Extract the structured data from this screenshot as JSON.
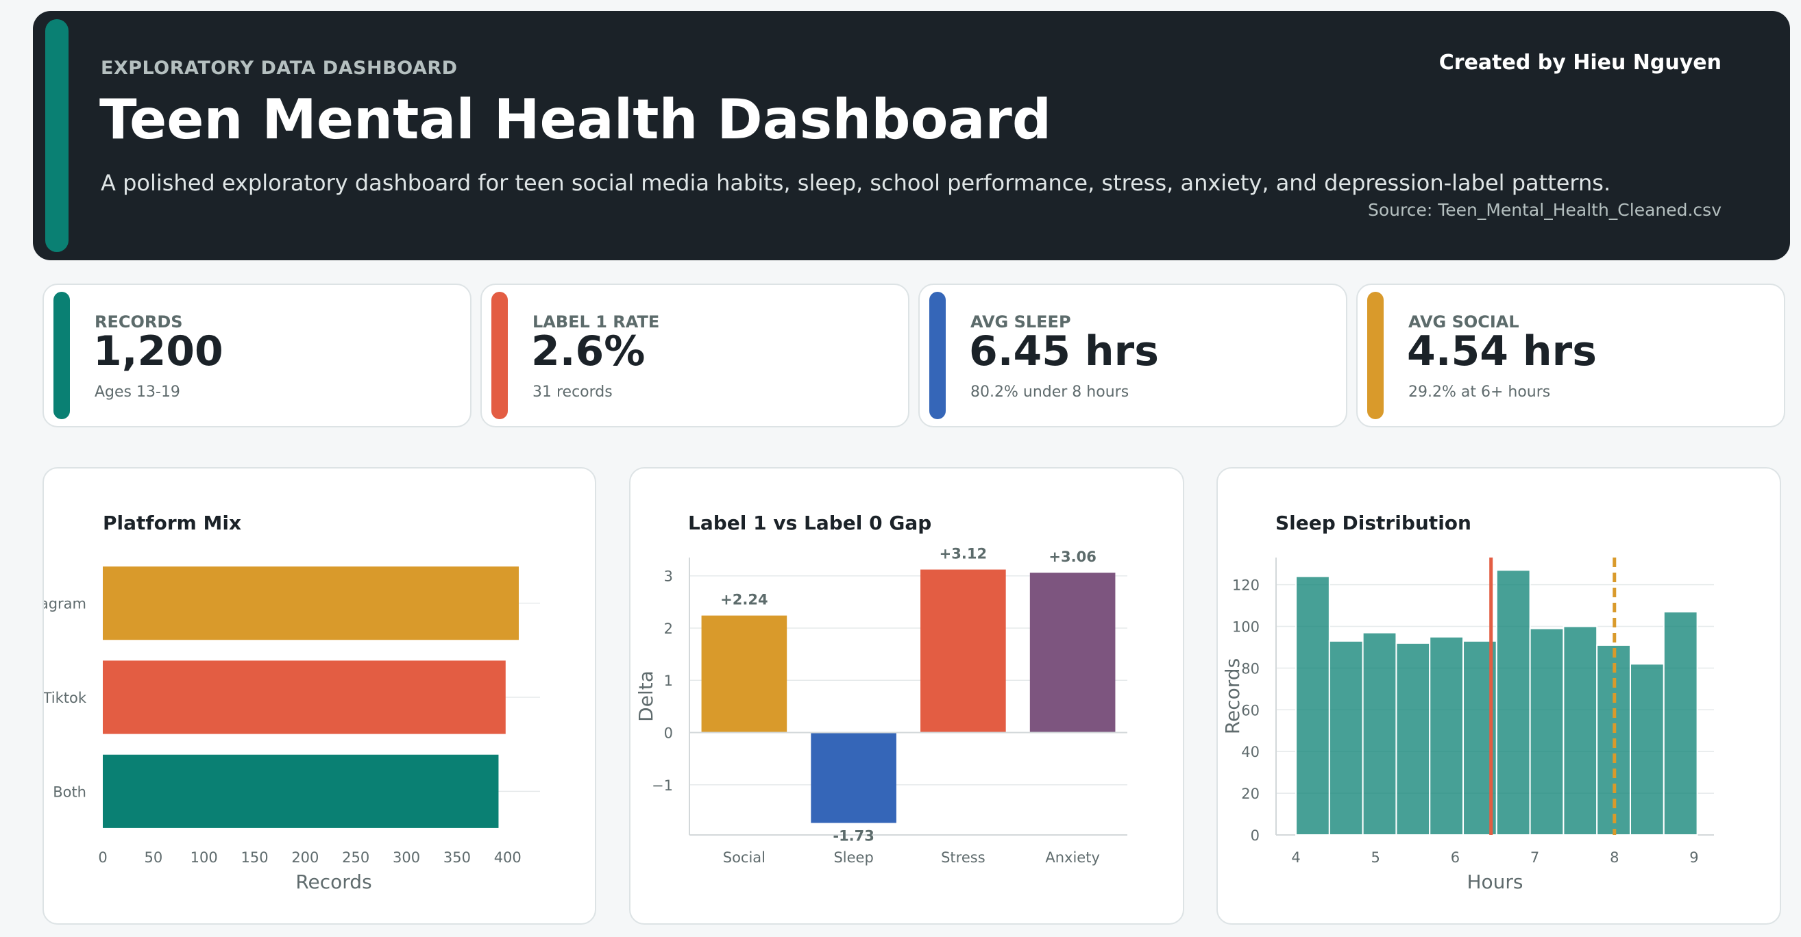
{
  "header": {
    "kicker": "EXPLORATORY DATA DASHBOARD",
    "title": "Teen Mental Health Dashboard",
    "subtitle": "A polished exploratory dashboard for teen social media habits, sleep, school performance, stress, anxiety, and depression-label patterns.",
    "credit": "Created by Hieu Nguyen",
    "source": "Source: Teen_Mental_Health_Cleaned.csv"
  },
  "kpis": [
    {
      "label": "RECORDS",
      "value": "1,200",
      "note": "Ages 13-19",
      "color": "#0a8073"
    },
    {
      "label": "LABEL 1 RATE",
      "value": "2.6%",
      "note": "31 records",
      "color": "#e35d43"
    },
    {
      "label": "AVG SLEEP",
      "value": "6.45 hrs",
      "note": "80.2% under 8 hours",
      "color": "#3566b8"
    },
    {
      "label": "AVG SOCIAL",
      "value": "4.54 hrs",
      "note": "29.2% at 6+ hours",
      "color": "#d99a2b"
    }
  ],
  "chart_data": [
    {
      "type": "bar",
      "orientation": "horizontal",
      "title": "Platform Mix",
      "categories": [
        "Instagram",
        "Tiktok",
        "Both"
      ],
      "values": [
        411,
        398,
        391
      ],
      "colors": [
        "#d99a2b",
        "#e35d43",
        "#0a8073"
      ],
      "xlabel": "Records",
      "ylabel": "",
      "xlim": [
        0,
        432
      ],
      "xticks": [
        0,
        50,
        100,
        150,
        200,
        250,
        300,
        350,
        400
      ],
      "grid": true
    },
    {
      "type": "bar",
      "title": "Label 1 vs Label 0 Gap",
      "categories": [
        "Social",
        "Sleep",
        "Stress",
        "Anxiety"
      ],
      "values": [
        2.24,
        -1.73,
        3.12,
        3.06
      ],
      "data_labels": [
        "+2.24",
        "-1.73",
        "+3.12",
        "+3.06"
      ],
      "colors": [
        "#d99a2b",
        "#3566b8",
        "#e35d43",
        "#7d557f"
      ],
      "xlabel": "",
      "ylabel": "Delta",
      "ylim": [
        -1.96,
        3.35
      ],
      "yticks": [
        -1,
        0,
        1,
        2,
        3
      ],
      "ytick_labels": [
        "−1",
        "0",
        "1",
        "2",
        "3"
      ],
      "grid": true
    },
    {
      "type": "bar",
      "subtype": "histogram",
      "title": "Sleep Distribution",
      "bin_edges": [
        4.0,
        4.42,
        4.84,
        5.26,
        5.68,
        6.1,
        6.52,
        6.94,
        7.36,
        7.78,
        8.2,
        8.62,
        9.04
      ],
      "values": [
        124,
        93,
        97,
        92,
        95,
        93,
        127,
        99,
        100,
        91,
        82,
        107
      ],
      "color": "#0a8073",
      "xlabel": "Hours",
      "ylabel": "Records",
      "xlim": [
        3.75,
        9.25
      ],
      "ylim": [
        0,
        133
      ],
      "xticks": [
        4,
        5,
        6,
        7,
        8,
        9
      ],
      "yticks": [
        0,
        20,
        40,
        60,
        80,
        100,
        120
      ],
      "reference_lines": [
        {
          "x": 6.45,
          "style": "solid",
          "color": "#e35d43"
        },
        {
          "x": 8,
          "style": "dashed",
          "color": "#d99a2b"
        }
      ],
      "grid": true
    }
  ]
}
